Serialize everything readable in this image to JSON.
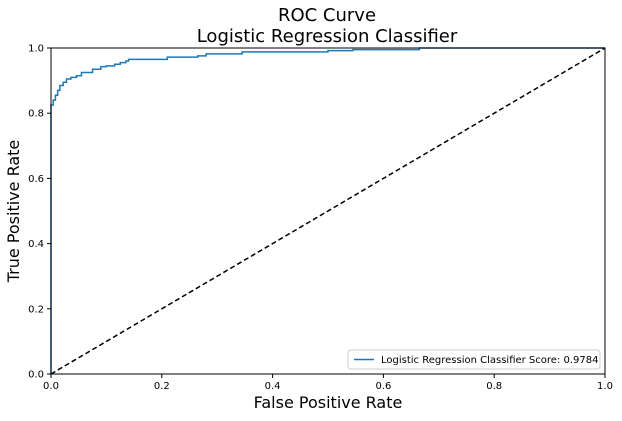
{
  "chart_data": {
    "type": "line",
    "title": "ROC Curve",
    "subtitle": "Logistic Regression Classifier",
    "xlabel": "False Positive Rate",
    "ylabel": "True Positive Rate",
    "xlim": [
      0.0,
      1.0
    ],
    "ylim": [
      0.0,
      1.0
    ],
    "xticks": [
      "0.0",
      "0.2",
      "0.4",
      "0.6",
      "0.8",
      "1.0"
    ],
    "yticks": [
      "0.0",
      "0.2",
      "0.4",
      "0.6",
      "0.8",
      "1.0"
    ],
    "grid": false,
    "legend_position": "lower-right",
    "colors": {
      "roc": "#1f77b4",
      "diagonal": "#000000"
    },
    "series": [
      {
        "name": "Logistic Regression Classifier Score: 0.9784",
        "x": [
          0.0,
          0.0,
          0.004,
          0.004,
          0.008,
          0.008,
          0.012,
          0.012,
          0.016,
          0.016,
          0.022,
          0.022,
          0.028,
          0.028,
          0.036,
          0.036,
          0.046,
          0.046,
          0.055,
          0.055,
          0.075,
          0.075,
          0.09,
          0.09,
          0.1,
          0.1,
          0.115,
          0.115,
          0.125,
          0.125,
          0.135,
          0.135,
          0.14,
          0.14,
          0.21,
          0.21,
          0.265,
          0.265,
          0.28,
          0.28,
          0.345,
          0.345,
          0.5,
          0.5,
          0.545,
          0.545,
          0.665,
          0.665,
          1.0
        ],
        "y": [
          0.0,
          0.825,
          0.825,
          0.84,
          0.84,
          0.855,
          0.855,
          0.87,
          0.87,
          0.885,
          0.885,
          0.895,
          0.895,
          0.905,
          0.905,
          0.91,
          0.91,
          0.915,
          0.915,
          0.925,
          0.925,
          0.935,
          0.935,
          0.943,
          0.943,
          0.945,
          0.945,
          0.95,
          0.95,
          0.955,
          0.955,
          0.96,
          0.96,
          0.965,
          0.965,
          0.972,
          0.972,
          0.976,
          0.976,
          0.982,
          0.982,
          0.988,
          0.988,
          0.992,
          0.992,
          0.995,
          0.995,
          1.0,
          1.0
        ]
      },
      {
        "name": "",
        "x": [
          0.0,
          1.0
        ],
        "y": [
          0.0,
          1.0
        ]
      }
    ]
  }
}
